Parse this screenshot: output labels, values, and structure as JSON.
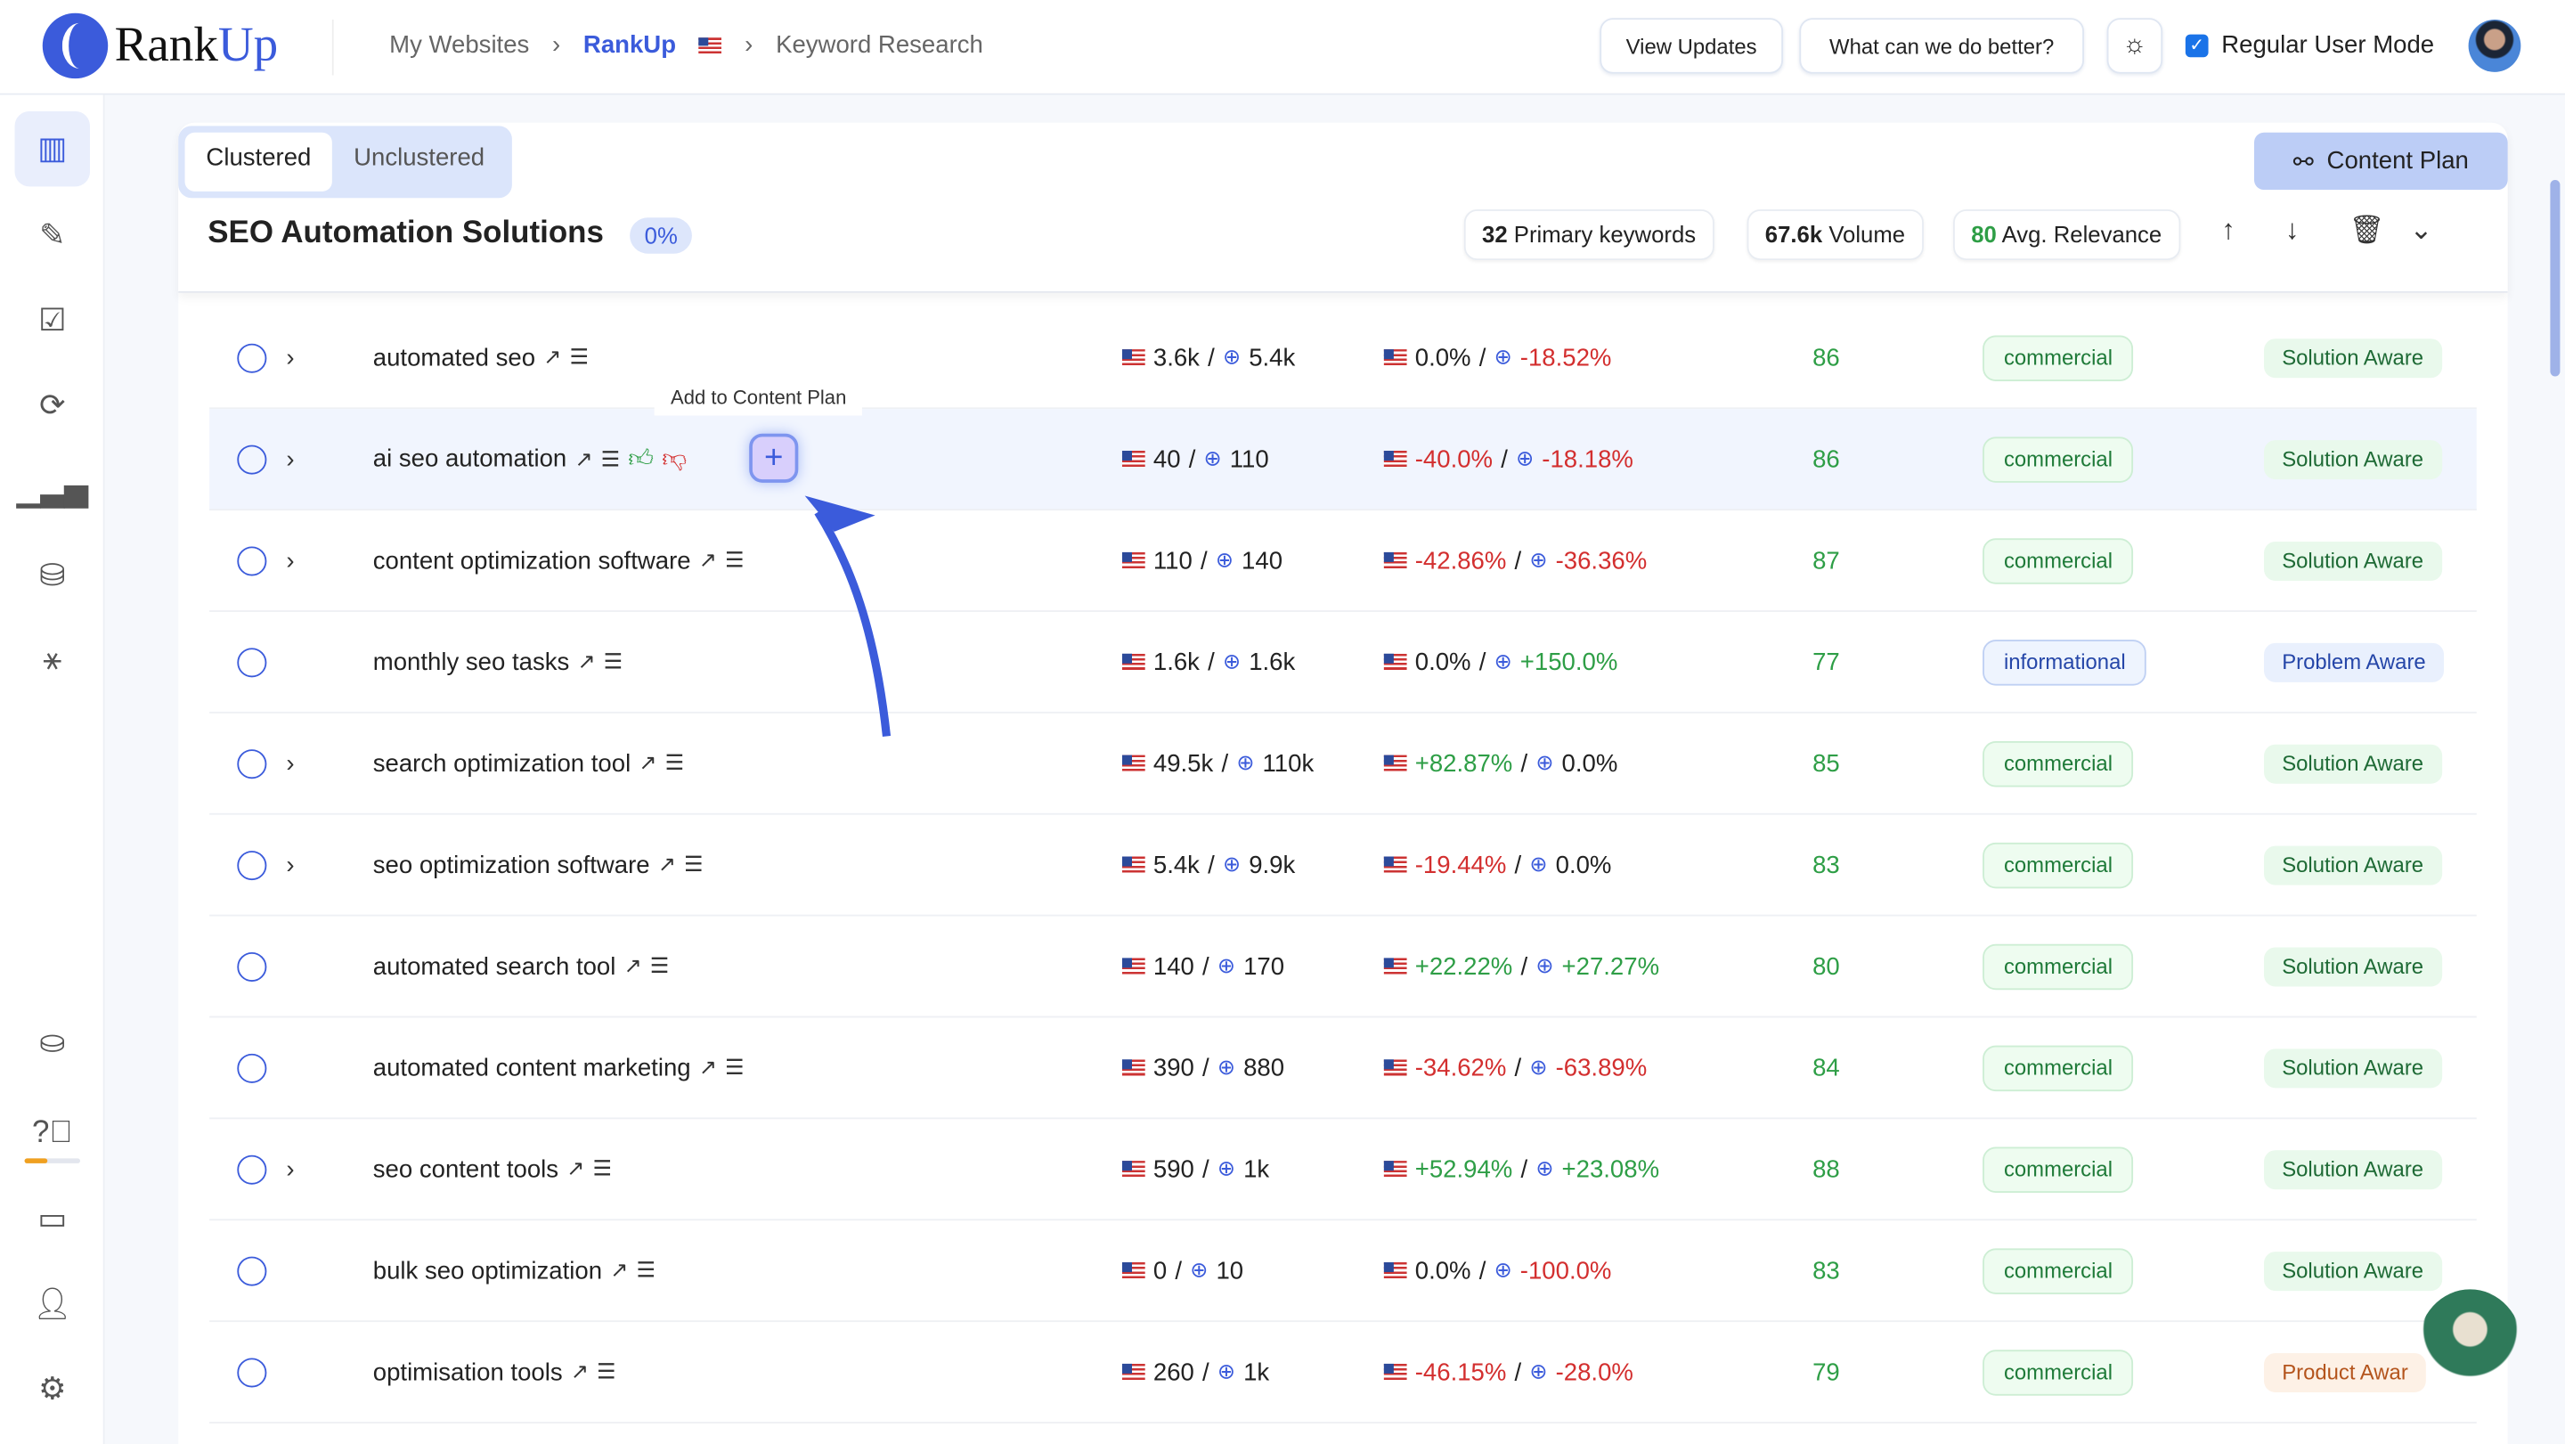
{
  "header": {
    "logo": "RankUp",
    "breadcrumbs": [
      "My Websites",
      "RankUp",
      "Keyword Research"
    ],
    "view_updates": "View Updates",
    "feedback": "What can we do better?",
    "mode_label": "Regular User Mode",
    "mode_checked": true
  },
  "sidebar": {
    "icons": [
      "map-icon",
      "document-edit-icon",
      "clipboard-check-icon",
      "refresh-icon",
      "bar-chart-icon",
      "database-icon",
      "network-icon",
      "coins-icon",
      "help-icon",
      "chat-icon",
      "add-user-icon",
      "settings-icon"
    ],
    "credit_progress": 0.4
  },
  "tabs": {
    "clustered": "Clustered",
    "unclustered": "Unclustered",
    "active": "Clustered"
  },
  "content_plan_button": "Content Plan",
  "cluster": {
    "title": "SEO Automation Solutions",
    "percent": "0%",
    "primary_count": "32",
    "primary_label": "Primary keywords",
    "volume": "67.6k",
    "volume_label": "Volume",
    "relevance": "80",
    "relevance_label": "Avg. Relevance"
  },
  "tooltip": "Add to Content Plan",
  "rows": [
    {
      "kw": "automated seo",
      "exp": true,
      "us": "3.6k",
      "gl": "5.4k",
      "ust": "0.0%",
      "glt": "-18.52%",
      "rel": "86",
      "intent": "commercial",
      "aware": "Solution Aware"
    },
    {
      "kw": "ai seo automation",
      "exp": true,
      "us": "40",
      "gl": "110",
      "ust": "-40.0%",
      "glt": "-18.18%",
      "rel": "86",
      "intent": "commercial",
      "aware": "Solution Aware"
    },
    {
      "kw": "content optimization software",
      "exp": true,
      "us": "110",
      "gl": "140",
      "ust": "-42.86%",
      "glt": "-36.36%",
      "rel": "87",
      "intent": "commercial",
      "aware": "Solution Aware"
    },
    {
      "kw": "monthly seo tasks",
      "exp": false,
      "us": "1.6k",
      "gl": "1.6k",
      "ust": "0.0%",
      "glt": "+150.0%",
      "rel": "77",
      "intent": "informational",
      "aware": "Problem Aware"
    },
    {
      "kw": "search optimization tool",
      "exp": true,
      "us": "49.5k",
      "gl": "110k",
      "ust": "+82.87%",
      "glt": "0.0%",
      "rel": "85",
      "intent": "commercial",
      "aware": "Solution Aware"
    },
    {
      "kw": "seo optimization software",
      "exp": true,
      "us": "5.4k",
      "gl": "9.9k",
      "ust": "-19.44%",
      "glt": "0.0%",
      "rel": "83",
      "intent": "commercial",
      "aware": "Solution Aware"
    },
    {
      "kw": "automated search tool",
      "exp": false,
      "us": "140",
      "gl": "170",
      "ust": "+22.22%",
      "glt": "+27.27%",
      "rel": "80",
      "intent": "commercial",
      "aware": "Solution Aware"
    },
    {
      "kw": "automated content marketing",
      "exp": false,
      "us": "390",
      "gl": "880",
      "ust": "-34.62%",
      "glt": "-63.89%",
      "rel": "84",
      "intent": "commercial",
      "aware": "Solution Aware"
    },
    {
      "kw": "seo content tools",
      "exp": true,
      "us": "590",
      "gl": "1k",
      "ust": "+52.94%",
      "glt": "+23.08%",
      "rel": "88",
      "intent": "commercial",
      "aware": "Solution Aware"
    },
    {
      "kw": "bulk seo optimization",
      "exp": false,
      "us": "0",
      "gl": "10",
      "ust": "0.0%",
      "glt": "-100.0%",
      "rel": "83",
      "intent": "commercial",
      "aware": "Solution Aware"
    },
    {
      "kw": "optimisation tools",
      "exp": false,
      "us": "260",
      "gl": "1k",
      "ust": "-46.15%",
      "glt": "-28.0%",
      "rel": "79",
      "intent": "commercial",
      "aware": "Product Awar"
    }
  ],
  "colors": {
    "accent": "#3b5bdb",
    "positive": "#2e9e46",
    "negative": "#d32f2f"
  }
}
